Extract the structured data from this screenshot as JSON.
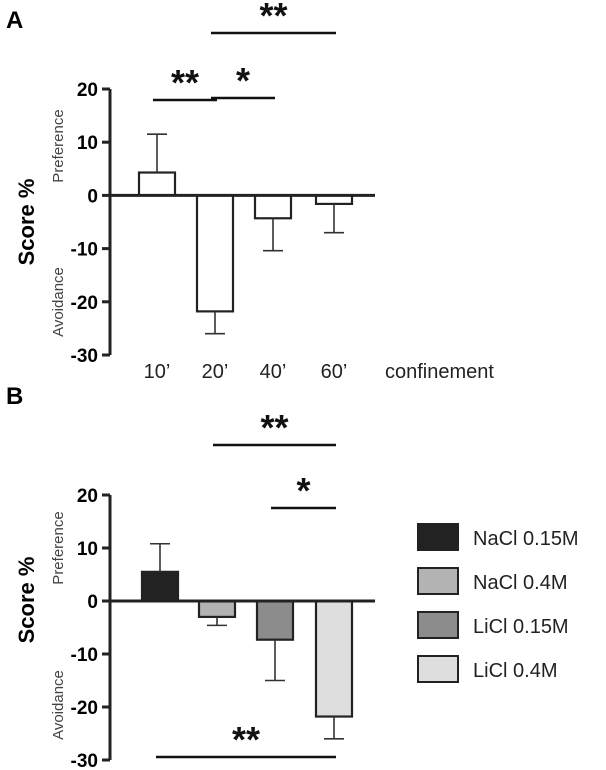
{
  "chart_data": [
    {
      "panel": "A",
      "type": "bar",
      "ylabel": "Score %",
      "side_labels": {
        "top": "Preference",
        "bottom": "Avoidance"
      },
      "categories": [
        "10’",
        "20’",
        "40’",
        "60’"
      ],
      "category_suffix": "confinement",
      "values": [
        4.3,
        -21.8,
        -4.3,
        -1.6
      ],
      "errors": [
        7.2,
        4.2,
        6.1,
        5.4
      ],
      "ylim": [
        -30,
        20
      ],
      "yticks": [
        20,
        10,
        0,
        -10,
        -20,
        -30
      ],
      "bar_colors": [
        "#ffffff",
        "#ffffff",
        "#ffffff",
        "#ffffff"
      ],
      "significance": [
        {
          "from": 0,
          "to": 1,
          "label": "**"
        },
        {
          "from": 1,
          "to": 2,
          "label": "*"
        },
        {
          "from": 1,
          "to": 3,
          "label": "**"
        }
      ]
    },
    {
      "panel": "B",
      "type": "bar",
      "ylabel": "Score %",
      "side_labels": {
        "top": "Preference",
        "bottom": "Avoidance"
      },
      "categories": [
        "NaCl 0.15M",
        "NaCl 0.4M",
        "LiCl 0.15M",
        "LiCl 0.4M"
      ],
      "values": [
        5.5,
        -3.0,
        -7.3,
        -21.8
      ],
      "errors": [
        5.3,
        1.6,
        7.7,
        4.2
      ],
      "ylim": [
        -30,
        20
      ],
      "yticks": [
        20,
        10,
        0,
        -10,
        -20,
        -30
      ],
      "bar_colors": [
        "#222222",
        "#b3b3b3",
        "#8c8c8c",
        "#dedede"
      ],
      "legend": [
        "NaCl 0.15M",
        "NaCl 0.4M",
        "LiCl 0.15M",
        "LiCl 0.4M"
      ],
      "legend_position": "right",
      "significance": [
        {
          "from": 1,
          "to": 3,
          "label": "**",
          "position": "above"
        },
        {
          "from": 2,
          "to": 3,
          "label": "*",
          "position": "above"
        },
        {
          "from": 0,
          "to": 3,
          "label": "**",
          "position": "below"
        }
      ]
    }
  ]
}
